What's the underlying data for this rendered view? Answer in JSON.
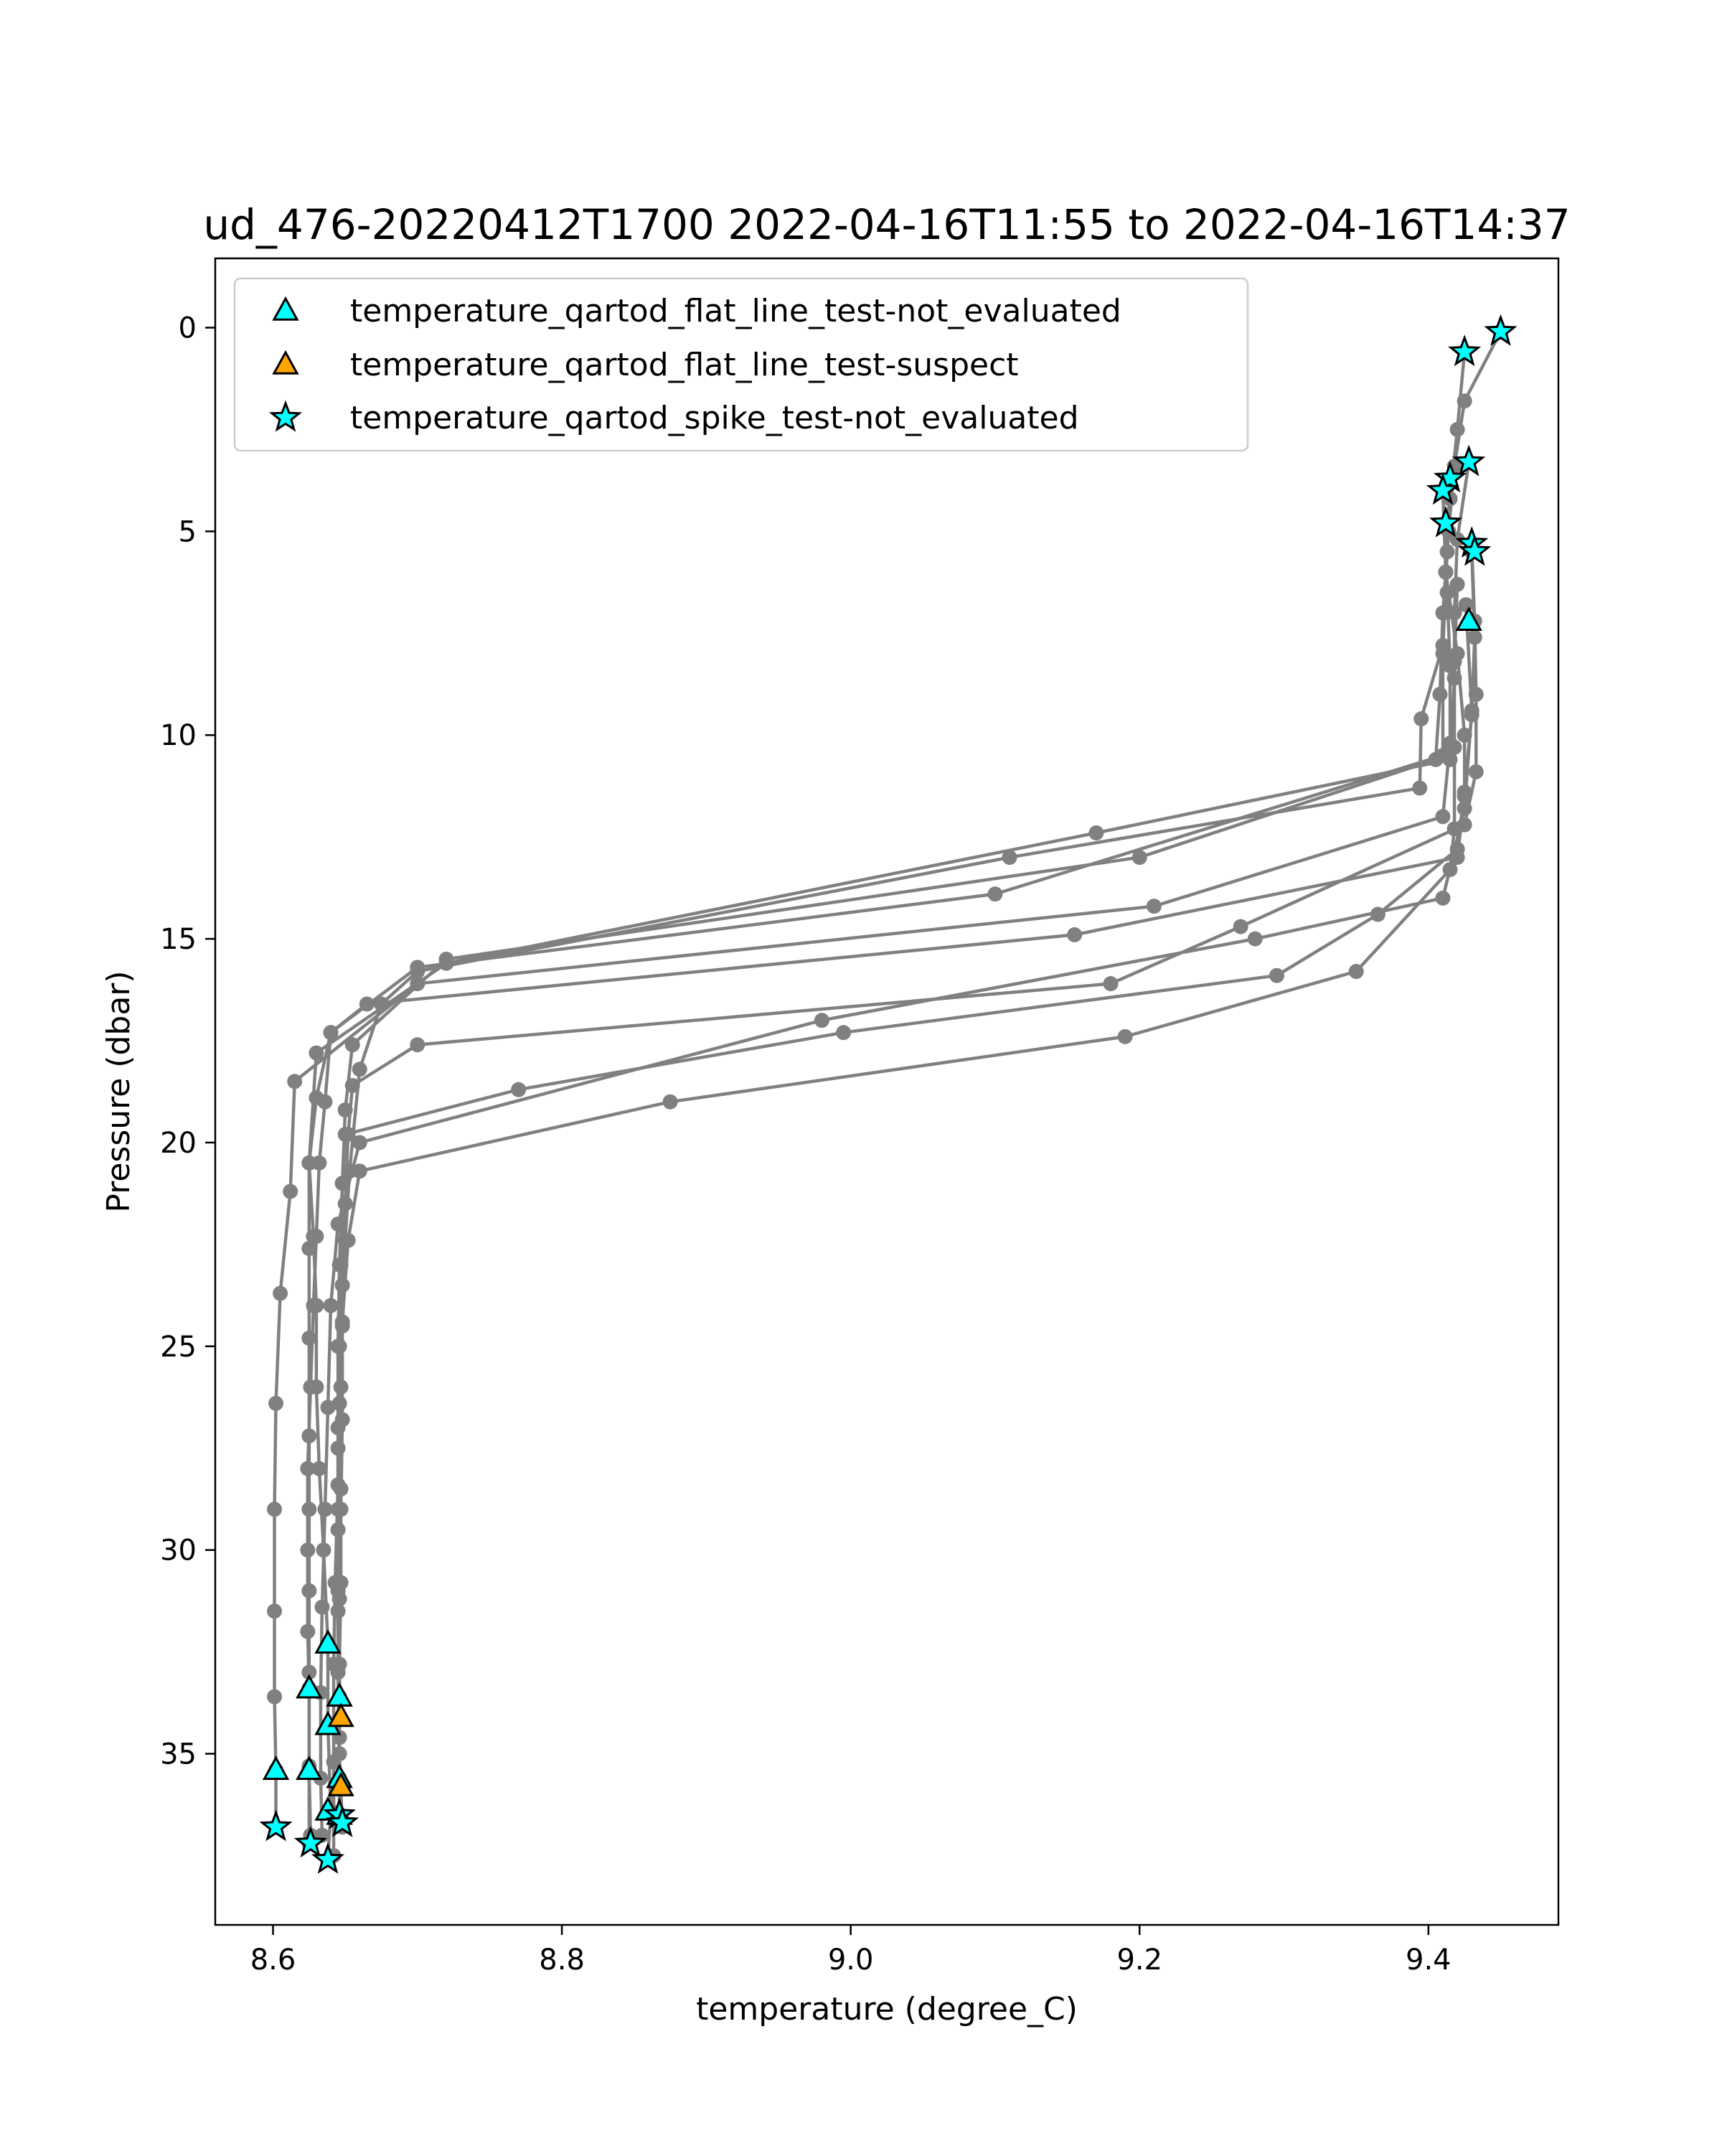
{
  "chart_data": {
    "type": "scatter",
    "title": "ud_476-20220412T1700 2022-04-16T11:55 to 2022-04-16T14:37",
    "xlabel": "temperature (degree_C)",
    "ylabel": "Pressure (dbar)",
    "xlim": [
      8.56,
      9.49
    ],
    "ylim": [
      39.2,
      -1.7
    ],
    "y_inverted": true,
    "xticks": [
      8.6,
      8.8,
      9.0,
      9.2,
      9.4
    ],
    "xtick_labels": [
      "8.6",
      "8.8",
      "9.0",
      "9.2",
      "9.4"
    ],
    "yticks": [
      0,
      5,
      10,
      15,
      20,
      25,
      30,
      35
    ],
    "ytick_labels": [
      "0",
      "5",
      "10",
      "15",
      "20",
      "25",
      "30",
      "35"
    ],
    "grid": false,
    "legend_position": "top-left",
    "colors": {
      "profile_line": "#808080",
      "not_evaluated": "#00ffff",
      "suspect": "#ffa500",
      "marker_edge": "#000000"
    },
    "legend": [
      {
        "label": "temperature_qartod_flat_line_test-not_evaluated",
        "marker": "triangle",
        "color": "#00ffff"
      },
      {
        "label": "temperature_qartod_flat_line_test-suspect",
        "marker": "triangle",
        "color": "#ffa500"
      },
      {
        "label": "temperature_qartod_spike_test-not_evaluated",
        "marker": "star",
        "color": "#00ffff"
      }
    ],
    "profiles": [
      {
        "points": [
          [
            9.45,
            0.1
          ],
          [
            9.425,
            1.8
          ],
          [
            9.418,
            3.4
          ],
          [
            9.414,
            5.0
          ],
          [
            9.41,
            7.0
          ],
          [
            9.408,
            9.0
          ],
          [
            9.405,
            10.6
          ],
          [
            9.2,
            13.0
          ],
          [
            8.72,
            15.5
          ],
          [
            8.655,
            17.6
          ],
          [
            8.65,
            19.2
          ],
          [
            8.648,
            21.0
          ],
          [
            8.646,
            23.0
          ],
          [
            8.645,
            25.0
          ],
          [
            8.645,
            27.0
          ],
          [
            8.645,
            29.0
          ],
          [
            8.645,
            31.0
          ],
          [
            8.645,
            33.0
          ],
          [
            8.646,
            35.0
          ],
          [
            8.648,
            36.8
          ]
        ]
      },
      {
        "points": [
          [
            9.425,
            0.6
          ],
          [
            9.42,
            2.5
          ],
          [
            9.415,
            4.2
          ],
          [
            9.412,
            6.0
          ],
          [
            9.41,
            8.0
          ],
          [
            9.41,
            10.5
          ],
          [
            9.1,
            13.9
          ],
          [
            8.7,
            15.7
          ],
          [
            8.64,
            17.3
          ],
          [
            8.63,
            18.9
          ],
          [
            8.625,
            20.5
          ],
          [
            8.625,
            22.6
          ],
          [
            8.625,
            24.8
          ],
          [
            8.625,
            27.2
          ],
          [
            8.625,
            29.0
          ],
          [
            8.625,
            31.0
          ],
          [
            8.625,
            33.0
          ],
          [
            8.625,
            35.3
          ],
          [
            8.625,
            37.2
          ]
        ]
      },
      {
        "points": [
          [
            9.428,
            3.3
          ],
          [
            9.42,
            5.2
          ],
          [
            9.418,
            7.0
          ],
          [
            9.418,
            8.6
          ],
          [
            9.415,
            10.6
          ],
          [
            9.17,
            12.4
          ],
          [
            8.72,
            15.6
          ],
          [
            8.63,
            17.8
          ],
          [
            8.625,
            20.5
          ],
          [
            8.628,
            22.3
          ],
          [
            8.63,
            24.0
          ],
          [
            8.63,
            26.0
          ],
          [
            8.632,
            28.0
          ],
          [
            8.635,
            30.0
          ],
          [
            8.638,
            32.3
          ],
          [
            8.638,
            34.3
          ],
          [
            8.64,
            36.4
          ],
          [
            8.638,
            37.6
          ]
        ]
      },
      {
        "points": [
          [
            9.415,
            3.7
          ],
          [
            9.413,
            5.5
          ],
          [
            9.41,
            7.8
          ],
          [
            9.395,
            9.6
          ],
          [
            9.394,
            11.3
          ],
          [
            9.11,
            13.0
          ],
          [
            8.7,
            15.8
          ],
          [
            8.675,
            16.6
          ],
          [
            8.66,
            18.2
          ],
          [
            8.653,
            20.7
          ],
          [
            8.65,
            22.4
          ],
          [
            8.648,
            24.5
          ],
          [
            8.648,
            26.8
          ],
          [
            8.647,
            29.0
          ],
          [
            8.646,
            31.2
          ],
          [
            8.646,
            33.6
          ],
          [
            8.646,
            35.6
          ],
          [
            8.646,
            36.7
          ]
        ]
      },
      {
        "points": [
          [
            9.41,
            4.0
          ],
          [
            9.412,
            6.0
          ],
          [
            9.42,
            8.0
          ],
          [
            9.425,
            10.0
          ],
          [
            9.425,
            11.5
          ],
          [
            9.42,
            13.0
          ],
          [
            9.155,
            14.9
          ],
          [
            8.665,
            16.6
          ],
          [
            8.64,
            17.3
          ],
          [
            8.636,
            19.0
          ],
          [
            8.632,
            20.5
          ],
          [
            8.63,
            22.3
          ],
          [
            8.628,
            24.0
          ],
          [
            8.626,
            26.0
          ],
          [
            8.624,
            28.0
          ],
          [
            8.624,
            30.0
          ],
          [
            8.624,
            32.0
          ],
          [
            8.625,
            33.4
          ],
          [
            8.625,
            35.4
          ],
          [
            8.626,
            37.0
          ]
        ]
      },
      {
        "points": [
          [
            9.412,
            4.8
          ],
          [
            9.413,
            6.5
          ],
          [
            9.415,
            8.3
          ],
          [
            9.415,
            10.2
          ],
          [
            9.41,
            12.0
          ],
          [
            9.21,
            14.2
          ],
          [
            8.7,
            16.1
          ],
          [
            8.615,
            18.5
          ],
          [
            8.612,
            21.2
          ],
          [
            8.605,
            23.7
          ],
          [
            8.602,
            26.4
          ],
          [
            8.601,
            29.0
          ],
          [
            8.601,
            31.5
          ],
          [
            8.601,
            33.6
          ],
          [
            8.602,
            35.4
          ],
          [
            8.602,
            36.8
          ]
        ]
      },
      {
        "points": [
          [
            9.43,
            5.4
          ],
          [
            9.432,
            7.2
          ],
          [
            9.433,
            9.0
          ],
          [
            9.433,
            10.9
          ],
          [
            9.425,
            12.2
          ],
          [
            9.27,
            14.7
          ],
          [
            9.18,
            16.1
          ],
          [
            8.7,
            17.6
          ],
          [
            8.655,
            18.6
          ],
          [
            8.652,
            19.8
          ],
          [
            8.65,
            21.5
          ],
          [
            8.648,
            23.5
          ],
          [
            8.647,
            26.0
          ],
          [
            8.647,
            28.5
          ],
          [
            8.647,
            30.8
          ],
          [
            8.646,
            32.8
          ],
          [
            8.646,
            34.6
          ],
          [
            8.646,
            36.5
          ]
        ]
      },
      {
        "points": [
          [
            9.43,
            5.5
          ],
          [
            9.432,
            7.6
          ],
          [
            9.43,
            9.5
          ],
          [
            9.425,
            11.4
          ],
          [
            9.42,
            12.8
          ],
          [
            9.365,
            14.4
          ],
          [
            9.295,
            15.9
          ],
          [
            8.995,
            17.3
          ],
          [
            8.77,
            18.7
          ],
          [
            8.65,
            19.8
          ],
          [
            8.648,
            21.0
          ],
          [
            8.647,
            23.0
          ],
          [
            8.646,
            25.0
          ],
          [
            8.645,
            27.5
          ],
          [
            8.645,
            29.5
          ],
          [
            8.645,
            31.5
          ],
          [
            8.645,
            33.0
          ],
          [
            8.646,
            35.8
          ],
          [
            8.646,
            36.6
          ]
        ]
      },
      {
        "points": [
          [
            9.42,
            6.3
          ],
          [
            9.418,
            8.2
          ],
          [
            9.418,
            10.3
          ],
          [
            9.418,
            12.3
          ],
          [
            9.415,
            13.3
          ],
          [
            9.35,
            15.8
          ],
          [
            9.19,
            17.4
          ],
          [
            8.875,
            19.0
          ],
          [
            8.66,
            20.7
          ],
          [
            8.652,
            22.4
          ],
          [
            8.648,
            24.4
          ],
          [
            8.646,
            26.4
          ],
          [
            8.645,
            28.4
          ],
          [
            8.643,
            30.8
          ],
          [
            8.642,
            32.8
          ],
          [
            8.642,
            35.2
          ],
          [
            8.642,
            37.5
          ]
        ]
      },
      {
        "points": [
          [
            9.426,
            6.8
          ],
          [
            9.43,
            9.4
          ],
          [
            9.425,
            11.8
          ],
          [
            9.41,
            14.0
          ],
          [
            9.28,
            15.0
          ],
          [
            8.98,
            17.0
          ],
          [
            8.66,
            20.0
          ],
          [
            8.645,
            22.0
          ],
          [
            8.64,
            24.0
          ],
          [
            8.638,
            26.5
          ],
          [
            8.636,
            29.0
          ],
          [
            8.634,
            31.4
          ],
          [
            8.633,
            33.5
          ],
          [
            8.633,
            35.6
          ],
          [
            8.634,
            37.0
          ]
        ]
      }
    ],
    "flat_line_not_evaluated": [
      [
        9.428,
        7.2
      ],
      [
        8.638,
        32.3
      ],
      [
        8.625,
        33.4
      ],
      [
        8.646,
        33.6
      ],
      [
        8.638,
        34.3
      ],
      [
        8.602,
        35.4
      ],
      [
        8.625,
        35.4
      ],
      [
        8.646,
        35.6
      ],
      [
        8.638,
        36.4
      ],
      [
        8.646,
        36.5
      ]
    ],
    "flat_line_suspect": [
      [
        8.647,
        34.1
      ],
      [
        8.647,
        35.8
      ]
    ],
    "spike_not_evaluated": [
      [
        9.45,
        0.1
      ],
      [
        9.425,
        0.6
      ],
      [
        9.428,
        3.3
      ],
      [
        9.415,
        3.7
      ],
      [
        9.41,
        4.0
      ],
      [
        9.412,
        4.8
      ],
      [
        9.43,
        5.3
      ],
      [
        9.432,
        5.5
      ],
      [
        8.646,
        36.5
      ],
      [
        8.648,
        36.7
      ],
      [
        8.602,
        36.8
      ],
      [
        8.626,
        37.2
      ],
      [
        8.638,
        37.6
      ]
    ]
  }
}
